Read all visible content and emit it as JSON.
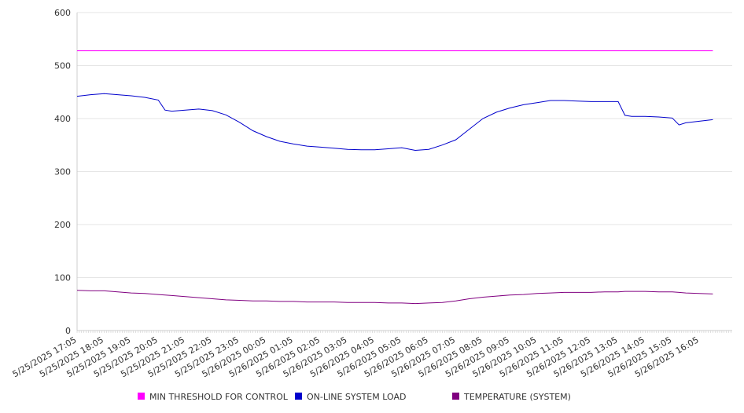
{
  "chart_data": {
    "type": "line",
    "title": "",
    "xlabel": "",
    "ylabel": "",
    "ylim": [
      0,
      600
    ],
    "yticks": [
      0,
      100,
      200,
      300,
      400,
      500,
      600
    ],
    "grid": true,
    "legend_position": "bottom",
    "x_tick_labels": [
      "5/25/2025 17:05",
      "5/25/2025 18:05",
      "5/25/2025 19:05",
      "5/25/2025 20:05",
      "5/25/2025 21:05",
      "5/25/2025 22:05",
      "5/25/2025 23:05",
      "5/26/2025 00:05",
      "5/26/2025 01:05",
      "5/26/2025 02:05",
      "5/26/2025 03:05",
      "5/26/2025 04:05",
      "5/26/2025 05:05",
      "5/26/2025 06:05",
      "5/26/2025 07:05",
      "5/26/2025 08:05",
      "5/26/2025 09:05",
      "5/26/2025 10:05",
      "5/26/2025 11:05",
      "5/26/2025 12:05",
      "5/26/2025 13:05",
      "5/26/2025 14:05",
      "5/26/2025 15:05",
      "5/26/2025 16:05"
    ],
    "x": [
      "5/25/2025 17:05",
      "5/25/2025 17:35",
      "5/25/2025 18:05",
      "5/25/2025 18:35",
      "5/25/2025 19:05",
      "5/25/2025 19:35",
      "5/25/2025 20:05",
      "5/25/2025 20:20",
      "5/25/2025 20:35",
      "5/25/2025 21:05",
      "5/25/2025 21:35",
      "5/25/2025 22:05",
      "5/25/2025 22:35",
      "5/25/2025 23:05",
      "5/25/2025 23:35",
      "5/26/2025 00:05",
      "5/26/2025 00:35",
      "5/26/2025 01:05",
      "5/26/2025 01:35",
      "5/26/2025 02:05",
      "5/26/2025 02:35",
      "5/26/2025 03:05",
      "5/26/2025 03:35",
      "5/26/2025 04:05",
      "5/26/2025 04:35",
      "5/26/2025 05:05",
      "5/26/2025 05:35",
      "5/26/2025 06:05",
      "5/26/2025 06:35",
      "5/26/2025 07:05",
      "5/26/2025 07:35",
      "5/26/2025 08:05",
      "5/26/2025 08:35",
      "5/26/2025 09:05",
      "5/26/2025 09:35",
      "5/26/2025 10:05",
      "5/26/2025 10:35",
      "5/26/2025 11:05",
      "5/26/2025 11:35",
      "5/26/2025 12:05",
      "5/26/2025 12:35",
      "5/26/2025 13:05",
      "5/26/2025 13:20",
      "5/26/2025 13:35",
      "5/26/2025 14:05",
      "5/26/2025 14:35",
      "5/26/2025 15:05",
      "5/26/2025 15:20",
      "5/26/2025 15:35",
      "5/26/2025 16:05",
      "5/26/2025 16:35"
    ],
    "series": [
      {
        "name": "MIN THRESHOLD FOR CONTROL",
        "color": "#ff00ff",
        "values": [
          528,
          528,
          528,
          528,
          528,
          528,
          528,
          528,
          528,
          528,
          528,
          528,
          528,
          528,
          528,
          528,
          528,
          528,
          528,
          528,
          528,
          528,
          528,
          528,
          528,
          528,
          528,
          528,
          528,
          528,
          528,
          528,
          528,
          528,
          528,
          528,
          528,
          528,
          528,
          528,
          528,
          528,
          528,
          528,
          528,
          528,
          528,
          528,
          528,
          528,
          528
        ]
      },
      {
        "name": "ON-LINE SYSTEM LOAD",
        "color": "#0000cc",
        "values": [
          442,
          445,
          447,
          445,
          443,
          440,
          435,
          416,
          414,
          416,
          418,
          415,
          407,
          393,
          377,
          366,
          357,
          352,
          348,
          346,
          344,
          342,
          341,
          341,
          343,
          345,
          340,
          342,
          350,
          360,
          380,
          400,
          412,
          420,
          426,
          430,
          434,
          434,
          433,
          432,
          432,
          432,
          406,
          404,
          404,
          403,
          401,
          388,
          392,
          395,
          398
        ]
      },
      {
        "name": "TEMPERATURE (SYSTEM)",
        "color": "#800080",
        "values": [
          76,
          75,
          75,
          73,
          71,
          70,
          68,
          67,
          66,
          64,
          62,
          60,
          58,
          57,
          56,
          56,
          55,
          55,
          54,
          54,
          54,
          53,
          53,
          53,
          52,
          52,
          51,
          52,
          53,
          56,
          60,
          63,
          65,
          67,
          68,
          70,
          71,
          72,
          72,
          72,
          73,
          73,
          74,
          74,
          74,
          73,
          73,
          72,
          71,
          70,
          69
        ]
      }
    ]
  }
}
